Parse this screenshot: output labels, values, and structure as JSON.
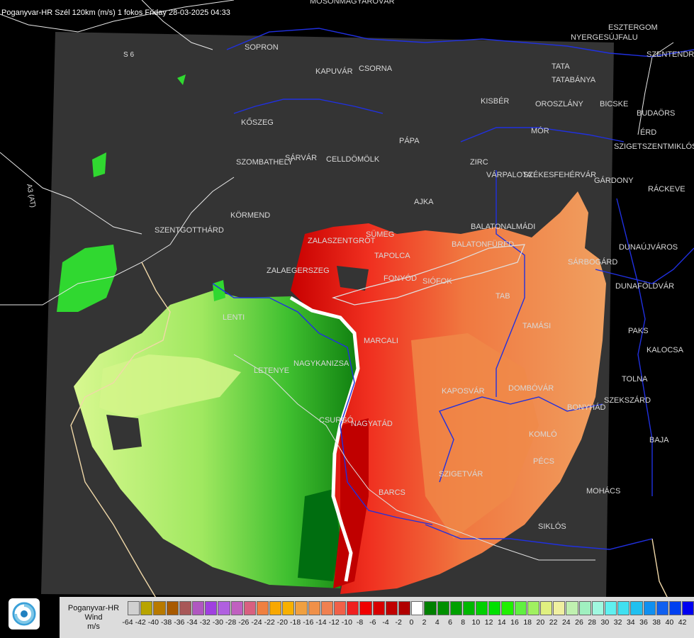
{
  "header": {
    "title": "Poganyvar-HR Szél 120km (m/s) 1 fokos Friday 28-03-2025 04:33"
  },
  "map": {
    "roads": [
      "S 6",
      "A3 (AT)"
    ],
    "cities": [
      "MOSONMAGYARÓVÁR",
      "ESZTERGOM",
      "SOPRON",
      "NYERGESÚJFALU",
      "SZENTENDRE",
      "KAPUVÁR",
      "CSORNA",
      "TATA",
      "TATABÁNYA",
      "KISBÉR",
      "OROSZLÁNY",
      "BICSKE",
      "BUDAÖRS",
      "KŐSZEG",
      "MÓR",
      "ÉRD",
      "PÁPA",
      "SZIGETSZENTMIKLÓS",
      "SZOMBATHELY",
      "SÁRVÁR",
      "CELLDÖMÖLK",
      "ZIRC",
      "VÁRPALOTA",
      "SZÉKESFEHÉRVÁR",
      "GÁRDONY",
      "RÁCKEVE",
      "AJKA",
      "KÖRMEND",
      "SZENTGOTTHÁRD",
      "BALATONALMÁDI",
      "ZALAEGERSZEG",
      "ZALASZENTGRÓT",
      "SÜMEG",
      "TAPOLCA",
      "BALATONFÜRED",
      "SÁRBOGÁRD",
      "DUNAÚJVÁROS",
      "SIÓFOK",
      "FONYÓD",
      "DUNAFÖLDVÁR",
      "LENTI",
      "TAB",
      "TAMÁSI",
      "MARCALI",
      "PAKS",
      "KALOCSA",
      "LETENYE",
      "NAGYKANIZSA",
      "KAPOSVÁR",
      "DOMBÓVÁR",
      "TOLNA",
      "SZEKSZÁRD",
      "BONYHÁD",
      "NAGYATÁD",
      "CSURGÓ",
      "KOMLÓ",
      "BAJA",
      "PÉCS",
      "SZIGETVÁR",
      "BARCS",
      "MOHÁCS",
      "SIKLÓS"
    ]
  },
  "legend": {
    "title_line1": "Poganyvar-HR",
    "title_line2": "Wind",
    "unit": "m/s",
    "values": [
      -64,
      -42,
      -40,
      -38,
      -36,
      -34,
      -32,
      -30,
      -28,
      -26,
      -24,
      -22,
      -20,
      -18,
      -16,
      -14,
      -12,
      -10,
      -8,
      -6,
      -4,
      -2,
      0,
      2,
      4,
      6,
      8,
      10,
      12,
      14,
      16,
      18,
      20,
      22,
      24,
      26,
      28,
      30,
      32,
      34,
      36,
      38,
      40,
      42
    ],
    "colors": [
      "#d0d0d0",
      "#b8a400",
      "#b87a00",
      "#a85a00",
      "#a85858",
      "#b058c0",
      "#a040e0",
      "#b060e0",
      "#c060c0",
      "#d86080",
      "#f08040",
      "#f8a800",
      "#f8b000",
      "#f0a040",
      "#f09048",
      "#f08050",
      "#f06048",
      "#f02020",
      "#f00000",
      "#d80000",
      "#c00000",
      "#b00000",
      "#ffffff",
      "#008000",
      "#009000",
      "#00a000",
      "#00b800",
      "#00d000",
      "#00e000",
      "#20f000",
      "#60f040",
      "#a0f060",
      "#e0f080",
      "#f0f0a0",
      "#c0f0b0",
      "#a0f0c0",
      "#a0f8e0",
      "#60f0f0",
      "#40e0f0",
      "#20c0f0",
      "#1090f0",
      "#1060f0",
      "#0040f0",
      "#0000f0"
    ],
    "color_scale": {
      "far_approach": "#a00000",
      "near_zero": "#ffffff",
      "far_recede": "#006000"
    }
  },
  "logo": {
    "name": "HungaroMet swirl logo"
  }
}
